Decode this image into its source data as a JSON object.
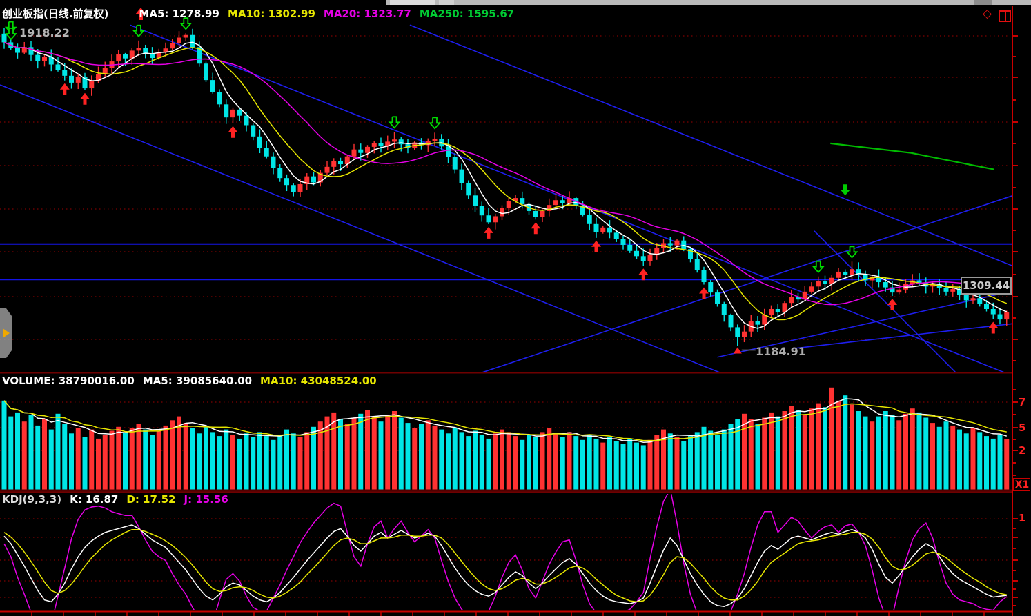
{
  "main_panel": {
    "title": "创业板指(日线.前复权)",
    "ma5": "MA5: 1278.99",
    "ma10": "MA10: 1302.99",
    "ma20": "MA20: 1323.77",
    "ma250": "MA250: 1595.67",
    "start_price_label": "1918.22",
    "low_annotation": "1184.91",
    "price_tag": "1309.44"
  },
  "volume_panel": {
    "volume_text": "VOLUME: 38790016.00",
    "ma5_text": "MA5: 39085640.00",
    "ma10_text": "MA10: 43048524.00",
    "axis_tick_top": "7",
    "axis_tick_mid": "5",
    "axis_tick_low": "2",
    "scale_tag": "X1"
  },
  "kdj_panel": {
    "label": "KDJ(9,3,3)",
    "k_text": "K: 16.87",
    "d_text": "D: 17.52",
    "j_text": "15.56",
    "j_prefix": "J:",
    "axis_tick": "1"
  },
  "icons": {
    "diamond": "◇"
  },
  "colors": {
    "up": "#ff3232",
    "down": "#00e6e6",
    "ma5": "#ffffff",
    "ma10": "#e6e600",
    "ma20": "#e600e6",
    "ma250": "#00bb00",
    "trendline": "#1e1eee",
    "grid": "#9b0000",
    "axis": "#c80000",
    "divider": "#6e0000",
    "signal_buy": "#ff2222",
    "signal_sell": "#00dd00",
    "label_gray": "#aaaaaa"
  },
  "chart_data": {
    "type": "candlestick+volume+kdj",
    "title": "创业板指(日线.前复权)",
    "price_axis": {
      "gridline_prices": [
        1900,
        1800,
        1700,
        1600,
        1500,
        1400,
        1300,
        1200
      ]
    },
    "first_open": 1905,
    "first_high": 1918.22,
    "low_day": {
      "index": 109,
      "low": 1184.91
    },
    "closes": [
      1885,
      1872,
      1861,
      1874,
      1856,
      1842,
      1852,
      1834,
      1821,
      1808,
      1792,
      1806,
      1779,
      1797,
      1812,
      1826,
      1841,
      1857,
      1848,
      1866,
      1872,
      1858,
      1849,
      1862,
      1871,
      1883,
      1896,
      1902,
      1874,
      1836,
      1798,
      1770,
      1742,
      1712,
      1730,
      1716,
      1694,
      1668,
      1642,
      1622,
      1596,
      1572,
      1556,
      1540,
      1558,
      1576,
      1562,
      1584,
      1598,
      1612,
      1604,
      1622,
      1638,
      1630,
      1644,
      1652,
      1647,
      1656,
      1661,
      1650,
      1642,
      1654,
      1648,
      1658,
      1663,
      1645,
      1620,
      1592,
      1561,
      1532,
      1508,
      1486,
      1470,
      1484,
      1503,
      1519,
      1526,
      1512,
      1496,
      1482,
      1496,
      1510,
      1521,
      1515,
      1526,
      1508,
      1488,
      1466,
      1448,
      1458,
      1446,
      1432,
      1418,
      1404,
      1392,
      1380,
      1394,
      1410,
      1422,
      1417,
      1428,
      1408,
      1386,
      1360,
      1332,
      1308,
      1282,
      1256,
      1228,
      1205,
      1218,
      1242,
      1234,
      1256,
      1270,
      1262,
      1284,
      1298,
      1292,
      1310,
      1322,
      1334,
      1328,
      1342,
      1356,
      1348,
      1362,
      1350,
      1336,
      1344,
      1332,
      1320,
      1308,
      1315,
      1328,
      1336,
      1330,
      1322,
      1328,
      1318,
      1310,
      1316,
      1302,
      1290,
      1295,
      1282,
      1270,
      1258,
      1246,
      1262
    ],
    "volumes_10m": [
      6.8,
      5.6,
      5.9,
      5.2,
      5.7,
      4.9,
      5.4,
      4.6,
      5.8,
      5.0,
      4.3,
      4.7,
      4.0,
      4.6,
      3.9,
      4.2,
      4.5,
      4.8,
      4.4,
      4.7,
      5.0,
      4.6,
      4.2,
      4.5,
      4.9,
      5.3,
      5.6,
      5.1,
      4.7,
      4.3,
      4.8,
      4.4,
      4.1,
      4.6,
      4.2,
      3.9,
      4.3,
      4.0,
      4.4,
      4.1,
      3.8,
      4.2,
      4.6,
      4.3,
      4.0,
      4.4,
      4.8,
      5.2,
      5.6,
      5.9,
      5.4,
      5.0,
      5.5,
      5.8,
      6.1,
      5.6,
      5.2,
      5.7,
      6.0,
      5.5,
      5.1,
      4.7,
      5.0,
      5.3,
      4.9,
      4.6,
      4.3,
      4.7,
      4.4,
      4.1,
      4.5,
      4.2,
      3.9,
      4.3,
      4.6,
      4.4,
      4.1,
      3.8,
      4.2,
      4.0,
      4.4,
      4.7,
      4.3,
      4.0,
      4.4,
      4.1,
      3.8,
      4.2,
      3.9,
      3.6,
      4.0,
      3.7,
      3.5,
      3.9,
      3.6,
      3.4,
      3.8,
      4.2,
      4.6,
      4.3,
      4.0,
      3.7,
      4.1,
      4.4,
      4.8,
      4.5,
      4.2,
      4.6,
      5.0,
      5.4,
      5.8,
      5.4,
      5.0,
      5.5,
      5.9,
      5.6,
      6.0,
      6.4,
      6.1,
      5.7,
      6.2,
      6.6,
      6.3,
      7.8,
      6.8,
      7.2,
      6.5,
      6.0,
      5.6,
      5.2,
      5.6,
      6.0,
      5.7,
      5.3,
      5.8,
      6.2,
      5.9,
      5.5,
      5.1,
      4.8,
      5.2,
      4.9,
      4.6,
      4.3,
      4.7,
      4.4,
      4.1,
      3.9,
      4.2,
      3.88
    ],
    "kdj_k": [
      80,
      72,
      60,
      48,
      35,
      22,
      12,
      10,
      18,
      30,
      45,
      58,
      68,
      75,
      80,
      84,
      86,
      88,
      90,
      92,
      88,
      82,
      76,
      72,
      68,
      60,
      52,
      44,
      34,
      24,
      16,
      12,
      18,
      26,
      30,
      28,
      22,
      16,
      12,
      10,
      14,
      20,
      28,
      36,
      45,
      54,
      62,
      70,
      78,
      85,
      88,
      80,
      70,
      64,
      72,
      80,
      84,
      78,
      82,
      86,
      82,
      78,
      80,
      83,
      80,
      70,
      58,
      46,
      36,
      28,
      22,
      18,
      16,
      20,
      28,
      36,
      42,
      38,
      30,
      24,
      30,
      38,
      45,
      52,
      56,
      50,
      40,
      30,
      22,
      16,
      12,
      10,
      9,
      8,
      10,
      14,
      30,
      48,
      65,
      78,
      70,
      55,
      40,
      28,
      18,
      10,
      6,
      5,
      8,
      14,
      24,
      38,
      52,
      64,
      70,
      66,
      72,
      78,
      80,
      78,
      76,
      79,
      82,
      84,
      82,
      85,
      87,
      84,
      78,
      66,
      50,
      36,
      30,
      38,
      48,
      58,
      66,
      72,
      68,
      58,
      48,
      40,
      34,
      30,
      26,
      22,
      18,
      15,
      16,
      16.87
    ],
    "kdj_d": [
      84,
      79,
      72,
      63,
      53,
      42,
      31,
      22,
      19,
      22,
      29,
      38,
      48,
      57,
      64,
      71,
      76,
      80,
      84,
      87,
      87,
      85,
      82,
      79,
      75,
      70,
      64,
      57,
      49,
      40,
      31,
      24,
      21,
      22,
      25,
      26,
      25,
      22,
      18,
      15,
      14,
      16,
      20,
      25,
      31,
      39,
      46,
      54,
      62,
      70,
      76,
      78,
      76,
      72,
      72,
      75,
      78,
      78,
      79,
      81,
      81,
      80,
      80,
      81,
      81,
      78,
      71,
      62,
      53,
      44,
      36,
      29,
      24,
      22,
      24,
      28,
      33,
      35,
      33,
      29,
      29,
      32,
      36,
      41,
      46,
      48,
      46,
      41,
      34,
      28,
      22,
      17,
      14,
      11,
      10,
      11,
      17,
      27,
      39,
      52,
      58,
      57,
      51,
      43,
      35,
      26,
      19,
      14,
      12,
      12,
      16,
      23,
      32,
      43,
      52,
      57,
      62,
      67,
      72,
      74,
      75,
      76,
      78,
      80,
      81,
      82,
      84,
      84,
      82,
      77,
      68,
      57,
      48,
      44,
      45,
      49,
      55,
      61,
      63,
      61,
      57,
      51,
      45,
      40,
      35,
      31,
      26,
      22,
      19,
      17.52
    ],
    "signals": {
      "sell_days": [
        1,
        20,
        27,
        58,
        64,
        121,
        126
      ],
      "buy_days": [
        9,
        12,
        34,
        72,
        79,
        88,
        95,
        104,
        132,
        147
      ],
      "sell_solid": {
        "day": 125,
        "price": 1532
      }
    },
    "hline_prices": [
      1420,
      1338
    ],
    "trendlines": [
      {
        "d1": 18.7,
        "p1": 1925,
        "d2": 148.6,
        "p2": 1124
      },
      {
        "d1": 60.3,
        "p1": 1925,
        "d2": 149.8,
        "p2": 1370
      },
      {
        "d1": -0.6,
        "p1": 1787,
        "d2": 106.3,
        "p2": 1124
      },
      {
        "d1": 120.4,
        "p1": 1450,
        "d2": 141.4,
        "p2": 1124
      },
      {
        "d1": 71.1,
        "p1": 1124,
        "d2": 149.8,
        "p2": 1531
      },
      {
        "d1": 106.0,
        "p1": 1159,
        "d2": 149.8,
        "p2": 1311
      },
      {
        "d1": 117.3,
        "p1": 1179,
        "d2": 152.6,
        "p2": 1241
      }
    ],
    "ma250_points": [
      [
        122.8,
        1652
      ],
      [
        134.8,
        1630
      ],
      [
        147.1,
        1592
      ]
    ]
  }
}
